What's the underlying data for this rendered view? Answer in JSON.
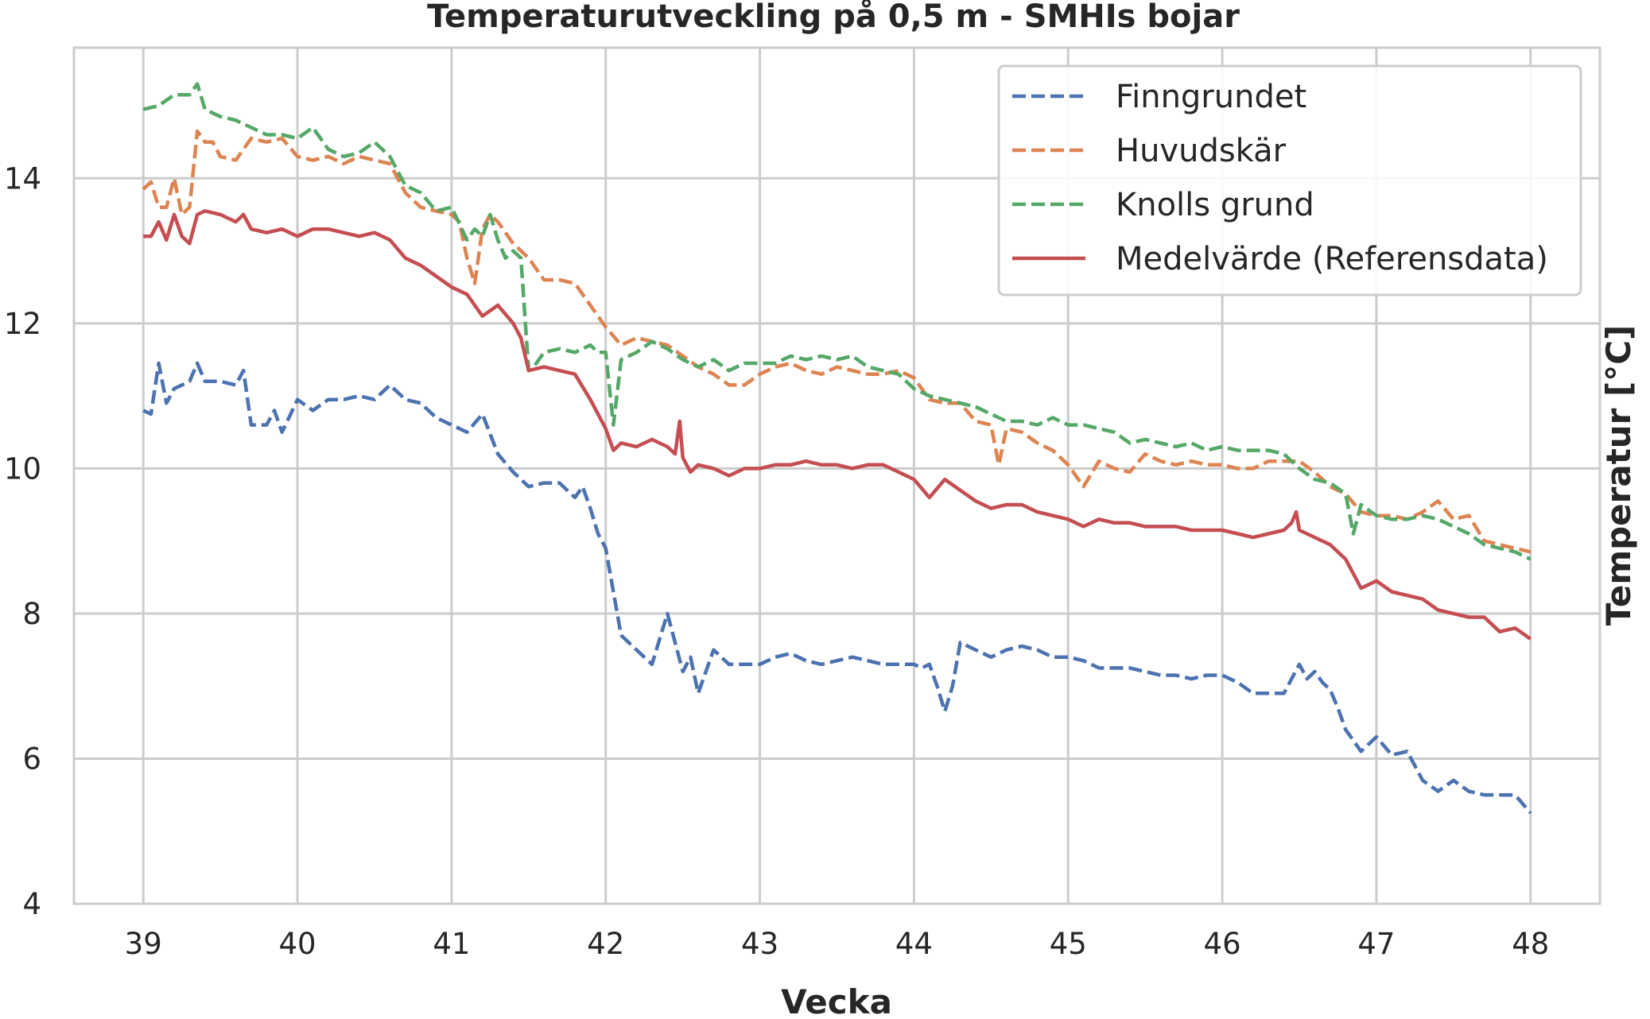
{
  "chart_data": {
    "type": "line",
    "title": "Temperaturutveckling på 0,5 m - SMHIs bojar",
    "xlabel": "Vecka",
    "ylabel": "Temperatur [°C]",
    "xlim": [
      38.55,
      48.45
    ],
    "ylim": [
      4,
      15.8
    ],
    "xticks": [
      39,
      40,
      41,
      42,
      43,
      44,
      45,
      46,
      47,
      48
    ],
    "yticks": [
      4,
      6,
      8,
      10,
      12,
      14
    ],
    "grid": true,
    "legend_position": "top-right",
    "series": [
      {
        "name": "Finngrundet",
        "style": "dashed",
        "color": "#4c72b0",
        "x": [
          39.0,
          39.05,
          39.1,
          39.15,
          39.2,
          39.3,
          39.35,
          39.4,
          39.5,
          39.6,
          39.65,
          39.7,
          39.8,
          39.85,
          39.9,
          40.0,
          40.1,
          40.2,
          40.3,
          40.4,
          40.5,
          40.6,
          40.7,
          40.8,
          40.9,
          41.0,
          41.1,
          41.2,
          41.3,
          41.4,
          41.5,
          41.6,
          41.7,
          41.8,
          41.85,
          41.9,
          41.95,
          42.0,
          42.05,
          42.1,
          42.2,
          42.3,
          42.4,
          42.5,
          42.55,
          42.6,
          42.7,
          42.8,
          42.9,
          43.0,
          43.1,
          43.2,
          43.3,
          43.4,
          43.5,
          43.6,
          43.7,
          43.8,
          43.9,
          44.0,
          44.05,
          44.1,
          44.15,
          44.2,
          44.25,
          44.3,
          44.4,
          44.5,
          44.6,
          44.7,
          44.8,
          44.9,
          45.0,
          45.1,
          45.2,
          45.3,
          45.4,
          45.5,
          45.6,
          45.7,
          45.8,
          45.9,
          46.0,
          46.1,
          46.2,
          46.3,
          46.4,
          46.5,
          46.55,
          46.6,
          46.65,
          46.7,
          46.75,
          46.8,
          46.9,
          46.95,
          47.0,
          47.1,
          47.2,
          47.3,
          47.4,
          47.5,
          47.6,
          47.7,
          47.8,
          47.9,
          48.0
        ],
        "y": [
          10.8,
          10.75,
          11.45,
          10.9,
          11.1,
          11.2,
          11.45,
          11.2,
          11.2,
          11.15,
          11.35,
          10.6,
          10.6,
          10.8,
          10.5,
          10.95,
          10.8,
          10.95,
          10.95,
          11.0,
          10.95,
          11.15,
          10.95,
          10.9,
          10.7,
          10.6,
          10.5,
          10.75,
          10.2,
          9.95,
          9.75,
          9.8,
          9.8,
          9.6,
          9.75,
          9.45,
          9.1,
          8.9,
          8.3,
          7.7,
          7.5,
          7.3,
          8.0,
          7.2,
          7.4,
          6.9,
          7.5,
          7.3,
          7.3,
          7.3,
          7.4,
          7.45,
          7.35,
          7.3,
          7.35,
          7.4,
          7.35,
          7.3,
          7.3,
          7.3,
          7.25,
          7.3,
          7.0,
          6.65,
          7.0,
          7.6,
          7.5,
          7.4,
          7.5,
          7.55,
          7.5,
          7.4,
          7.4,
          7.35,
          7.25,
          7.25,
          7.25,
          7.2,
          7.15,
          7.15,
          7.1,
          7.15,
          7.15,
          7.05,
          6.9,
          6.9,
          6.9,
          7.3,
          7.1,
          7.2,
          7.05,
          6.95,
          6.7,
          6.4,
          6.1,
          6.2,
          6.3,
          6.05,
          6.1,
          5.7,
          5.55,
          5.7,
          5.55,
          5.5,
          5.5,
          5.5,
          5.25
        ]
      },
      {
        "name": "Huvudskär",
        "style": "dashed",
        "color": "#dd8452",
        "x": [
          39.0,
          39.05,
          39.1,
          39.15,
          39.2,
          39.25,
          39.3,
          39.35,
          39.4,
          39.45,
          39.5,
          39.6,
          39.7,
          39.8,
          39.9,
          40.0,
          40.1,
          40.2,
          40.3,
          40.4,
          40.5,
          40.6,
          40.7,
          40.8,
          40.9,
          41.0,
          41.05,
          41.1,
          41.15,
          41.2,
          41.25,
          41.3,
          41.4,
          41.5,
          41.6,
          41.7,
          41.8,
          41.9,
          42.0,
          42.1,
          42.2,
          42.3,
          42.4,
          42.5,
          42.6,
          42.7,
          42.8,
          42.9,
          43.0,
          43.1,
          43.2,
          43.3,
          43.4,
          43.5,
          43.6,
          43.7,
          43.8,
          43.9,
          44.0,
          44.1,
          44.2,
          44.3,
          44.4,
          44.5,
          44.55,
          44.6,
          44.7,
          44.8,
          44.9,
          45.0,
          45.1,
          45.2,
          45.3,
          45.4,
          45.5,
          45.6,
          45.7,
          45.8,
          45.9,
          46.0,
          46.1,
          46.2,
          46.3,
          46.4,
          46.5,
          46.6,
          46.7,
          46.8,
          46.9,
          47.0,
          47.1,
          47.2,
          47.3,
          47.4,
          47.5,
          47.6,
          47.7,
          47.8,
          47.9,
          48.0
        ],
        "y": [
          13.85,
          13.95,
          13.6,
          13.6,
          14.0,
          13.5,
          13.6,
          14.65,
          14.5,
          14.5,
          14.3,
          14.25,
          14.55,
          14.5,
          14.55,
          14.3,
          14.25,
          14.3,
          14.2,
          14.3,
          14.25,
          14.2,
          13.8,
          13.6,
          13.55,
          13.5,
          13.4,
          12.9,
          12.55,
          13.3,
          13.5,
          13.4,
          13.1,
          12.9,
          12.6,
          12.6,
          12.55,
          12.25,
          11.95,
          11.7,
          11.8,
          11.75,
          11.7,
          11.55,
          11.4,
          11.3,
          11.15,
          11.15,
          11.3,
          11.4,
          11.45,
          11.35,
          11.3,
          11.4,
          11.35,
          11.3,
          11.3,
          11.35,
          11.25,
          10.95,
          10.9,
          10.9,
          10.65,
          10.6,
          10.05,
          10.55,
          10.5,
          10.35,
          10.25,
          10.05,
          9.75,
          10.1,
          10.0,
          9.95,
          10.2,
          10.1,
          10.05,
          10.1,
          10.05,
          10.05,
          10.0,
          10.0,
          10.1,
          10.1,
          10.1,
          9.95,
          9.75,
          9.65,
          9.4,
          9.35,
          9.35,
          9.3,
          9.4,
          9.55,
          9.3,
          9.35,
          9.0,
          8.95,
          8.9,
          8.85
        ]
      },
      {
        "name": "Knolls grund",
        "style": "dashed",
        "color": "#55a868",
        "x": [
          39.0,
          39.1,
          39.2,
          39.3,
          39.35,
          39.4,
          39.5,
          39.6,
          39.7,
          39.8,
          39.9,
          40.0,
          40.1,
          40.2,
          40.3,
          40.4,
          40.5,
          40.6,
          40.7,
          40.8,
          40.9,
          41.0,
          41.1,
          41.15,
          41.2,
          41.25,
          41.3,
          41.35,
          41.4,
          41.45,
          41.5,
          41.55,
          41.6,
          41.7,
          41.8,
          41.9,
          41.95,
          42.0,
          42.05,
          42.1,
          42.2,
          42.3,
          42.4,
          42.5,
          42.6,
          42.7,
          42.8,
          42.9,
          43.0,
          43.1,
          43.2,
          43.3,
          43.4,
          43.5,
          43.6,
          43.7,
          43.8,
          43.9,
          44.0,
          44.1,
          44.2,
          44.3,
          44.4,
          44.5,
          44.6,
          44.7,
          44.8,
          44.9,
          45.0,
          45.1,
          45.2,
          45.3,
          45.4,
          45.5,
          45.6,
          45.7,
          45.8,
          45.9,
          46.0,
          46.1,
          46.2,
          46.3,
          46.4,
          46.5,
          46.6,
          46.7,
          46.8,
          46.85,
          46.9,
          47.0,
          47.1,
          47.2,
          47.3,
          47.4,
          47.5,
          47.6,
          47.7,
          47.8,
          47.9,
          48.0
        ],
        "y": [
          14.95,
          15.0,
          15.15,
          15.15,
          15.3,
          14.95,
          14.85,
          14.8,
          14.7,
          14.6,
          14.6,
          14.55,
          14.7,
          14.4,
          14.3,
          14.35,
          14.5,
          14.3,
          13.9,
          13.8,
          13.55,
          13.6,
          13.15,
          13.3,
          13.2,
          13.5,
          13.15,
          12.9,
          13.0,
          12.9,
          11.35,
          11.45,
          11.6,
          11.65,
          11.6,
          11.7,
          11.6,
          11.6,
          10.6,
          11.5,
          11.6,
          11.75,
          11.65,
          11.5,
          11.4,
          11.5,
          11.35,
          11.45,
          11.45,
          11.45,
          11.55,
          11.5,
          11.55,
          11.5,
          11.55,
          11.4,
          11.35,
          11.3,
          11.1,
          11.0,
          10.95,
          10.9,
          10.85,
          10.75,
          10.65,
          10.65,
          10.6,
          10.7,
          10.6,
          10.6,
          10.55,
          10.5,
          10.35,
          10.4,
          10.35,
          10.3,
          10.35,
          10.25,
          10.3,
          10.25,
          10.25,
          10.25,
          10.2,
          10.0,
          9.85,
          9.8,
          9.65,
          9.1,
          9.5,
          9.35,
          9.3,
          9.3,
          9.35,
          9.3,
          9.2,
          9.1,
          8.95,
          8.9,
          8.85,
          8.75
        ]
      },
      {
        "name": "Medelvärde (Referensdata)",
        "style": "solid",
        "color": "#c44e52",
        "x": [
          39.0,
          39.05,
          39.1,
          39.15,
          39.2,
          39.25,
          39.3,
          39.35,
          39.4,
          39.5,
          39.6,
          39.65,
          39.7,
          39.8,
          39.9,
          40.0,
          40.1,
          40.2,
          40.3,
          40.4,
          40.5,
          40.6,
          40.7,
          40.8,
          40.9,
          41.0,
          41.1,
          41.2,
          41.3,
          41.4,
          41.45,
          41.5,
          41.6,
          41.7,
          41.8,
          41.9,
          42.0,
          42.05,
          42.1,
          42.2,
          42.3,
          42.4,
          42.45,
          42.48,
          42.5,
          42.55,
          42.6,
          42.7,
          42.8,
          42.9,
          43.0,
          43.1,
          43.2,
          43.3,
          43.4,
          43.5,
          43.6,
          43.7,
          43.8,
          43.9,
          44.0,
          44.1,
          44.2,
          44.3,
          44.4,
          44.5,
          44.6,
          44.7,
          44.8,
          44.9,
          45.0,
          45.1,
          45.2,
          45.3,
          45.4,
          45.5,
          45.6,
          45.7,
          45.8,
          45.9,
          46.0,
          46.1,
          46.2,
          46.3,
          46.4,
          46.45,
          46.48,
          46.5,
          46.6,
          46.7,
          46.8,
          46.85,
          46.9,
          47.0,
          47.1,
          47.2,
          47.3,
          47.4,
          47.5,
          47.6,
          47.7,
          47.8,
          47.9,
          48.0
        ],
        "y": [
          13.2,
          13.2,
          13.4,
          13.15,
          13.5,
          13.2,
          13.1,
          13.5,
          13.55,
          13.5,
          13.4,
          13.5,
          13.3,
          13.25,
          13.3,
          13.2,
          13.3,
          13.3,
          13.25,
          13.2,
          13.25,
          13.15,
          12.9,
          12.8,
          12.65,
          12.5,
          12.4,
          12.1,
          12.25,
          12.0,
          11.8,
          11.35,
          11.4,
          11.35,
          11.3,
          10.95,
          10.55,
          10.25,
          10.35,
          10.3,
          10.4,
          10.3,
          10.2,
          10.65,
          10.15,
          9.95,
          10.05,
          10.0,
          9.9,
          10.0,
          10.0,
          10.05,
          10.05,
          10.1,
          10.05,
          10.05,
          10.0,
          10.05,
          10.05,
          9.95,
          9.85,
          9.6,
          9.85,
          9.7,
          9.55,
          9.45,
          9.5,
          9.5,
          9.4,
          9.35,
          9.3,
          9.2,
          9.3,
          9.25,
          9.25,
          9.2,
          9.2,
          9.2,
          9.15,
          9.15,
          9.15,
          9.1,
          9.05,
          9.1,
          9.15,
          9.25,
          9.4,
          9.15,
          9.05,
          8.95,
          8.75,
          8.55,
          8.35,
          8.45,
          8.3,
          8.25,
          8.2,
          8.05,
          8.0,
          7.95,
          7.95,
          7.75,
          7.8,
          7.65
        ]
      }
    ]
  }
}
